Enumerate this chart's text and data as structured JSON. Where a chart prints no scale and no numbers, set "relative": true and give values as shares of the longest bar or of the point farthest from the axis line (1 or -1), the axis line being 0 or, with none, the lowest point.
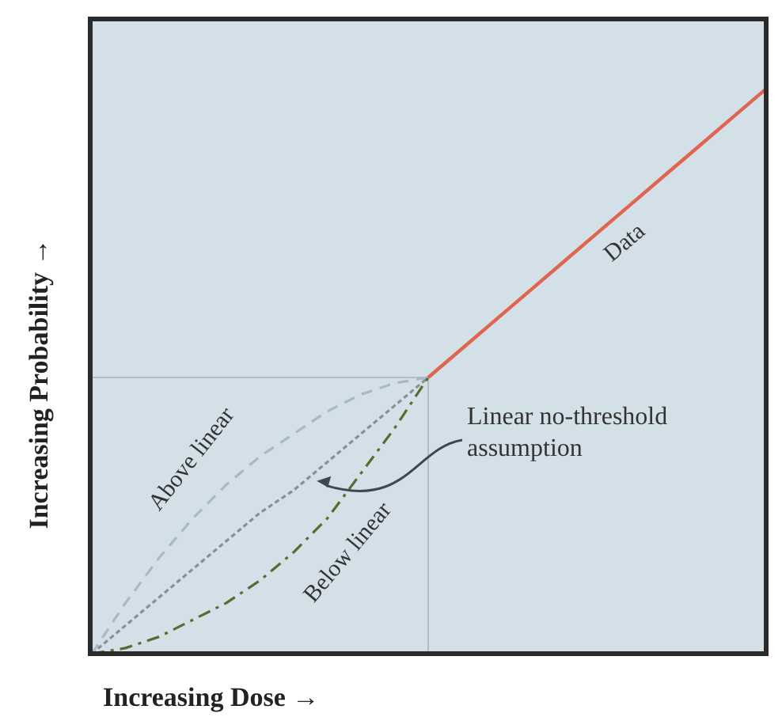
{
  "chart_data": {
    "type": "line",
    "relative": true,
    "xlabel": "Increasing Dose →",
    "ylabel": "Increasing Probability →",
    "categories": [
      null,
      null,
      null,
      null,
      null,
      null,
      null,
      null,
      null,
      null,
      null,
      null,
      null,
      null,
      null,
      null,
      null,
      null,
      null,
      null,
      null
    ],
    "series": [
      {
        "name": "Data",
        "color": "#e0654f",
        "line_style": "solid",
        "values": [
          null,
          null,
          null,
          null,
          null,
          null,
          null,
          null,
          null,
          null,
          0.49,
          0.541,
          0.592,
          0.643,
          0.694,
          0.745,
          0.796,
          0.847,
          0.898,
          0.949,
          1
        ]
      },
      {
        "name": "Linear no-threshold assumption",
        "color": "#8a8f96",
        "line_style": "dotted",
        "values": [
          0,
          0.05,
          0.1,
          0.15,
          0.2,
          0.25,
          0.29,
          0.34,
          0.39,
          0.44,
          0.49,
          null,
          null,
          null,
          null,
          null,
          null,
          null,
          null,
          null,
          null
        ]
      },
      {
        "name": "Above linear",
        "color": "#a7b9c8",
        "line_style": "dashed",
        "values": [
          0,
          0.09,
          0.17,
          0.24,
          0.3,
          0.35,
          0.39,
          0.43,
          0.46,
          0.48,
          0.49,
          null,
          null,
          null,
          null,
          null,
          null,
          null,
          null,
          null,
          null
        ]
      },
      {
        "name": "Below linear",
        "color": "#5b6b2c",
        "line_style": "dashdot",
        "values": [
          0,
          0.01,
          0.03,
          0.06,
          0.09,
          0.13,
          0.18,
          0.24,
          0.32,
          0.4,
          0.49,
          null,
          null,
          null,
          null,
          null,
          null,
          null,
          null,
          null,
          null
        ]
      }
    ],
    "ref_lines": [
      {
        "axis": "y",
        "value": 0.49,
        "color": "#b4bcc3"
      }
    ],
    "grid": false,
    "legend": false,
    "marker": "none"
  }
}
